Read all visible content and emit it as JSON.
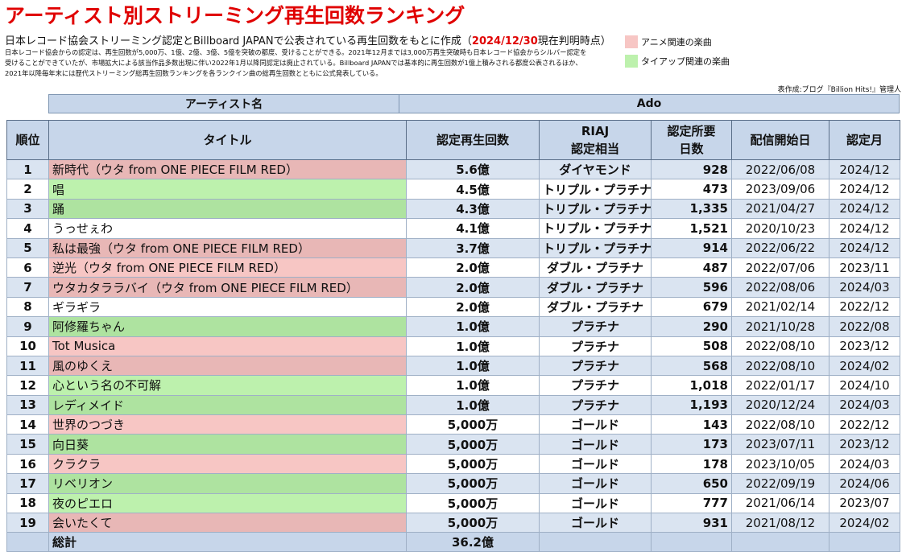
{
  "header": {
    "title": "アーティスト別ストリーミング再生回数ランキング",
    "subtitle_prefix": "日本レコード協会ストリーミング認定とBillboard JAPANで公表されている再生回数をもとに作成（",
    "subtitle_date": "2024/12/30",
    "subtitle_suffix": "現在判明時点）",
    "notes": [
      "日本レコード協会からの認定は、再生回数が5,000万、1億、2億、3億、5億を突破の都度、受けることができる。2021年12月までは3,000万再生突破時も日本レコード協会からシルバー認定を",
      "受けることができていたが、市場拡大による該当作品多数出現に伴い2022年1月以降同認定は廃止されている。Billboard JAPANでは基本的に再生回数が1億上積みされる都度公表されるほか、",
      "2021年以降毎年末には歴代ストリーミング総再生回数ランキングを各ランクイン曲の総再生回数とともに公式発表している。"
    ],
    "credit": "表作成:ブログ『Billion Hits!』管理人"
  },
  "legend": {
    "anime_label": "アニメ関連の楽曲",
    "anime_color": "#f7c6c4",
    "tieup_label": "タイアップ関連の楽曲",
    "tieup_color": "#bdf1ad"
  },
  "artist": {
    "label": "アーティスト名",
    "name": "Ado"
  },
  "table": {
    "columns": {
      "rank": "順位",
      "title": "タイトル",
      "plays": "認定再生回数",
      "riaj_1": "RIAJ",
      "riaj_2": "認定相当",
      "days_1": "認定所要",
      "days_2": "日数",
      "release": "配信開始日",
      "cert_month": "認定月"
    },
    "rows": [
      {
        "rank": "1",
        "title": "新時代（ウタ from ONE PIECE FILM RED）",
        "tag": "anime",
        "plays": "5.6億",
        "riaj": "ダイヤモンド",
        "days": "928",
        "release": "2022/06/08",
        "month": "2024/12"
      },
      {
        "rank": "2",
        "title": "唱",
        "tag": "tieup",
        "plays": "4.5億",
        "riaj": "トリプル・プラチナ",
        "days": "473",
        "release": "2023/09/06",
        "month": "2024/12"
      },
      {
        "rank": "3",
        "title": "踊",
        "tag": "tieup",
        "plays": "4.3億",
        "riaj": "トリプル・プラチナ",
        "days": "1,335",
        "release": "2021/04/27",
        "month": "2024/12"
      },
      {
        "rank": "4",
        "title": "うっせぇわ",
        "tag": "none",
        "plays": "4.1億",
        "riaj": "トリプル・プラチナ",
        "days": "1,521",
        "release": "2020/10/23",
        "month": "2024/12"
      },
      {
        "rank": "5",
        "title": "私は最強（ウタ from ONE PIECE FILM RED）",
        "tag": "anime",
        "plays": "3.7億",
        "riaj": "トリプル・プラチナ",
        "days": "914",
        "release": "2022/06/22",
        "month": "2024/12"
      },
      {
        "rank": "6",
        "title": "逆光（ウタ from ONE PIECE FILM RED）",
        "tag": "anime",
        "plays": "2.0億",
        "riaj": "ダブル・プラチナ",
        "days": "487",
        "release": "2022/07/06",
        "month": "2023/11"
      },
      {
        "rank": "7",
        "title": "ウタカタララバイ（ウタ from ONE PIECE FILM RED）",
        "tag": "anime",
        "plays": "2.0億",
        "riaj": "ダブル・プラチナ",
        "days": "596",
        "release": "2022/08/06",
        "month": "2024/03"
      },
      {
        "rank": "8",
        "title": "ギラギラ",
        "tag": "none",
        "plays": "2.0億",
        "riaj": "ダブル・プラチナ",
        "days": "679",
        "release": "2021/02/14",
        "month": "2022/12"
      },
      {
        "rank": "9",
        "title": "阿修羅ちゃん",
        "tag": "tieup",
        "plays": "1.0億",
        "riaj": "プラチナ",
        "days": "290",
        "release": "2021/10/28",
        "month": "2022/08"
      },
      {
        "rank": "10",
        "title": "Tot Musica",
        "tag": "anime",
        "plays": "1.0億",
        "riaj": "プラチナ",
        "days": "508",
        "release": "2022/08/10",
        "month": "2023/12"
      },
      {
        "rank": "11",
        "title": "風のゆくえ",
        "tag": "anime",
        "plays": "1.0億",
        "riaj": "プラチナ",
        "days": "568",
        "release": "2022/08/10",
        "month": "2024/02"
      },
      {
        "rank": "12",
        "title": "心という名の不可解",
        "tag": "tieup",
        "plays": "1.0億",
        "riaj": "プラチナ",
        "days": "1,018",
        "release": "2022/01/17",
        "month": "2024/10"
      },
      {
        "rank": "13",
        "title": "レディメイド",
        "tag": "tieup",
        "plays": "1.0億",
        "riaj": "プラチナ",
        "days": "1,193",
        "release": "2020/12/24",
        "month": "2024/03"
      },
      {
        "rank": "14",
        "title": "世界のつづき",
        "tag": "anime",
        "plays": "5,000万",
        "riaj": "ゴールド",
        "days": "143",
        "release": "2022/08/10",
        "month": "2022/12"
      },
      {
        "rank": "15",
        "title": "向日葵",
        "tag": "tieup",
        "plays": "5,000万",
        "riaj": "ゴールド",
        "days": "173",
        "release": "2023/07/11",
        "month": "2023/12"
      },
      {
        "rank": "16",
        "title": "クラクラ",
        "tag": "anime",
        "plays": "5,000万",
        "riaj": "ゴールド",
        "days": "178",
        "release": "2023/10/05",
        "month": "2024/03"
      },
      {
        "rank": "17",
        "title": "リベリオン",
        "tag": "tieup",
        "plays": "5,000万",
        "riaj": "ゴールド",
        "days": "650",
        "release": "2022/09/19",
        "month": "2024/06"
      },
      {
        "rank": "18",
        "title": "夜のピエロ",
        "tag": "tieup",
        "plays": "5,000万",
        "riaj": "ゴールド",
        "days": "777",
        "release": "2021/06/14",
        "month": "2023/07"
      },
      {
        "rank": "19",
        "title": "会いたくて",
        "tag": "anime",
        "plays": "5,000万",
        "riaj": "ゴールド",
        "days": "931",
        "release": "2021/08/12",
        "month": "2024/02"
      }
    ],
    "total_label": "総計",
    "total_plays": "36.2億"
  }
}
